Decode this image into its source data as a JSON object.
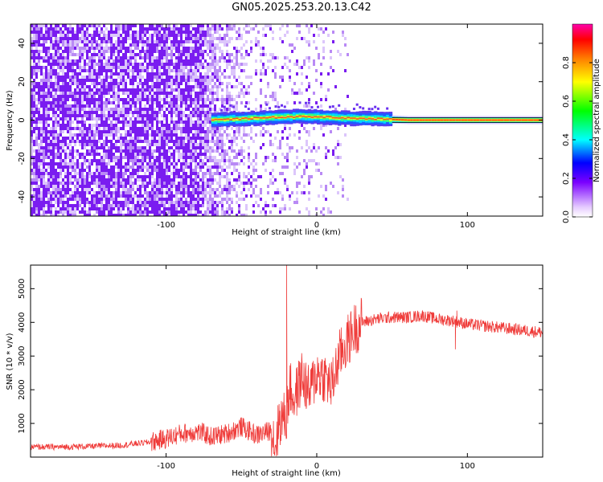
{
  "page_title": "GN05.2025.253.20.13.C42",
  "chart_data": [
    {
      "type": "heatmap",
      "title": "GN05.2025.253.20.13.C42",
      "xlabel": "Height of straight line (km)",
      "ylabel": "Frequency (Hz)",
      "xlim": [
        -190,
        150
      ],
      "ylim": [
        -50,
        50
      ],
      "xticks": [
        -100,
        0,
        100
      ],
      "yticks": [
        -40,
        -20,
        0,
        20,
        40
      ],
      "colorbar": {
        "label": "Normalized spectral amplitude",
        "range": [
          0,
          1
        ],
        "ticks": [
          "0.0",
          "0.2",
          "0.4",
          "0.6",
          "0.8"
        ],
        "colormap": [
          "#ffffff",
          "#e6ccff",
          "#7a00ff",
          "#0000ff",
          "#00ffff",
          "#00ff00",
          "#ffff00",
          "#ff7f00",
          "#ff0000",
          "#ff00aa"
        ]
      },
      "ridge": {
        "x": [
          -70,
          -40,
          -10,
          20,
          45,
          60,
          150
        ],
        "y": [
          0,
          1,
          2,
          1,
          0.5,
          0,
          0
        ],
        "relative_amplitude": [
          0.3,
          0.4,
          0.45,
          0.5,
          0.5,
          0.55,
          0.55
        ]
      }
    },
    {
      "type": "line",
      "title": "",
      "xlabel": "Height of straight line (km)",
      "ylabel": "SNR (10 * v/v)",
      "xlim": [
        -190,
        150
      ],
      "ylim": [
        0,
        5700
      ],
      "xticks": [
        -100,
        0,
        100
      ],
      "yticks": [
        1000,
        2000,
        3000,
        4000,
        5000
      ],
      "line_color": "#ef3b39",
      "series": [
        {
          "x": [
            -190,
            -170,
            -150,
            -130,
            -110,
            -100,
            -90,
            -80,
            -75,
            -70,
            -60,
            -50,
            -40,
            -30,
            -27,
            -25,
            -20,
            -18,
            -15,
            -10,
            -5,
            0,
            5,
            10,
            15,
            20,
            25,
            30,
            40,
            50,
            60,
            70,
            80,
            90,
            100,
            110,
            120,
            130,
            140,
            150
          ],
          "values": [
            300,
            300,
            320,
            350,
            450,
            550,
            700,
            750,
            700,
            600,
            700,
            900,
            650,
            800,
            300,
            1100,
            1200,
            2100,
            1700,
            2400,
            1900,
            2500,
            2400,
            2100,
            3000,
            3400,
            3800,
            4000,
            4100,
            4150,
            4150,
            4200,
            4100,
            4050,
            3950,
            3900,
            3850,
            3800,
            3750,
            3700
          ],
          "spikes": [
            {
              "x": -20,
              "y": 5700
            },
            {
              "x": -18,
              "y": 2200
            },
            {
              "x": 92,
              "y": 3200
            },
            {
              "x": 93,
              "y": 4350
            }
          ]
        }
      ]
    }
  ]
}
